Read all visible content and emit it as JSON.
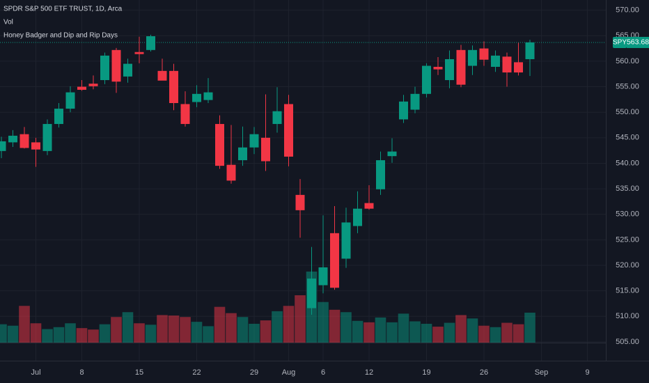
{
  "chart_data": {
    "type": "candlestick",
    "title": "SPDR S&P 500 ETF TRUST, 1D, Arca",
    "indicators": [
      "Vol",
      "Honey Badger and Dip and Rip Days"
    ],
    "symbol": "SPY",
    "last_price": 563.68,
    "up_color": "#089981",
    "down_color": "#f23645",
    "grid": true,
    "categories": [
      null,
      null,
      null,
      "Jul",
      null,
      null,
      null,
      "8",
      null,
      null,
      null,
      null,
      "15",
      null,
      null,
      null,
      null,
      "22",
      null,
      null,
      null,
      null,
      "29",
      null,
      null,
      "Aug",
      null,
      null,
      "6",
      null,
      null,
      null,
      "12",
      null,
      null,
      null,
      null,
      "19",
      null,
      null,
      null,
      null,
      "26",
      null,
      null,
      null,
      null,
      "Sep",
      null,
      null,
      null,
      "9",
      null
    ],
    "open": [
      542.4,
      544.1,
      545.7,
      544.1,
      542.4,
      547.7,
      550.7,
      555.0,
      555.6,
      556.3,
      562.2,
      557.0,
      561.8,
      562.2,
      558.1,
      558.1,
      551.6,
      552.0,
      552.4,
      547.7,
      539.7,
      540.6,
      543.1,
      545.0,
      547.7,
      551.6,
      533.8,
      511.6,
      516.1,
      526.3,
      521.3,
      527.7,
      532.2,
      534.9,
      541.4,
      548.6,
      550.5,
      553.6,
      558.9,
      556.3,
      562.2,
      559.1,
      562.5,
      558.9,
      560.9,
      559.8,
      560.4,
      null,
      null,
      null,
      null,
      null,
      null
    ],
    "high": [
      545.2,
      546.5,
      547.1,
      545.0,
      548.6,
      551.8,
      555.1,
      556.3,
      557.2,
      561.7,
      562.6,
      560.5,
      564.8,
      565.2,
      560.5,
      559.5,
      554.1,
      555.3,
      556.7,
      549.4,
      547.5,
      547.2,
      547.1,
      553.5,
      554.9,
      553.4,
      536.9,
      523.6,
      529.8,
      531.6,
      531.3,
      534.5,
      535.7,
      542.3,
      544.9,
      553.4,
      555.0,
      559.6,
      560.8,
      562.1,
      563.2,
      563.1,
      563.9,
      562.1,
      561.7,
      563.7,
      564.2,
      null,
      null,
      null,
      null,
      null,
      null
    ],
    "low": [
      541.0,
      543.2,
      542.9,
      539.3,
      541.6,
      547.0,
      550.0,
      554.2,
      554.5,
      555.5,
      553.8,
      555.8,
      559.6,
      561.9,
      556.6,
      550.4,
      547.2,
      551.0,
      551.8,
      538.9,
      536.0,
      539.5,
      541.8,
      538.5,
      546.0,
      539.4,
      525.4,
      510.3,
      514.5,
      515.2,
      519.5,
      526.3,
      530.9,
      533.8,
      540.1,
      547.9,
      549.8,
      552.9,
      557.3,
      554.7,
      554.9,
      557.3,
      559.1,
      557.9,
      555.0,
      557.2,
      557.1,
      null,
      null,
      null,
      null,
      null,
      null
    ],
    "close": [
      544.3,
      545.4,
      543.0,
      542.7,
      547.7,
      550.7,
      553.9,
      554.4,
      555.1,
      561.1,
      556.0,
      559.5,
      561.4,
      564.9,
      556.2,
      551.8,
      547.7,
      553.6,
      553.9,
      539.5,
      536.6,
      543.1,
      545.7,
      540.4,
      550.2,
      541.3,
      530.8,
      517.4,
      519.6,
      515.6,
      528.4,
      531.1,
      531.1,
      540.6,
      542.3,
      552.1,
      553.6,
      559.1,
      558.4,
      560.4,
      555.4,
      562.2,
      560.3,
      561.1,
      557.8,
      557.8,
      563.68,
      null,
      null,
      null,
      null,
      null,
      null
    ],
    "volume": [
      38,
      35,
      76,
      40,
      28,
      32,
      40,
      30,
      27,
      38,
      53,
      63,
      40,
      37,
      57,
      56,
      53,
      43,
      34,
      74,
      61,
      53,
      39,
      46,
      65,
      76,
      98,
      147,
      84,
      68,
      63,
      45,
      42,
      52,
      42,
      60,
      44,
      39,
      33,
      41,
      57,
      50,
      35,
      32,
      41,
      38,
      62,
      null,
      null,
      null,
      null,
      null,
      null
    ],
    "ylim": [
      501.3,
      572.0
    ],
    "yticks": [
      {
        "value": 505,
        "label": "505.00"
      },
      {
        "value": 510,
        "label": "510.00"
      },
      {
        "value": 515,
        "label": "515.00"
      },
      {
        "value": 520,
        "label": "520.00"
      },
      {
        "value": 525,
        "label": "525.00"
      },
      {
        "value": 530,
        "label": "530.00"
      },
      {
        "value": 535,
        "label": "535.00"
      },
      {
        "value": 540,
        "label": "540.00"
      },
      {
        "value": 545,
        "label": "545.00"
      },
      {
        "value": 550,
        "label": "550.00"
      },
      {
        "value": 555,
        "label": "555.00"
      },
      {
        "value": 560,
        "label": "560.00"
      },
      {
        "value": 565,
        "label": "565.00"
      },
      {
        "value": 570,
        "label": "570.00"
      }
    ]
  }
}
